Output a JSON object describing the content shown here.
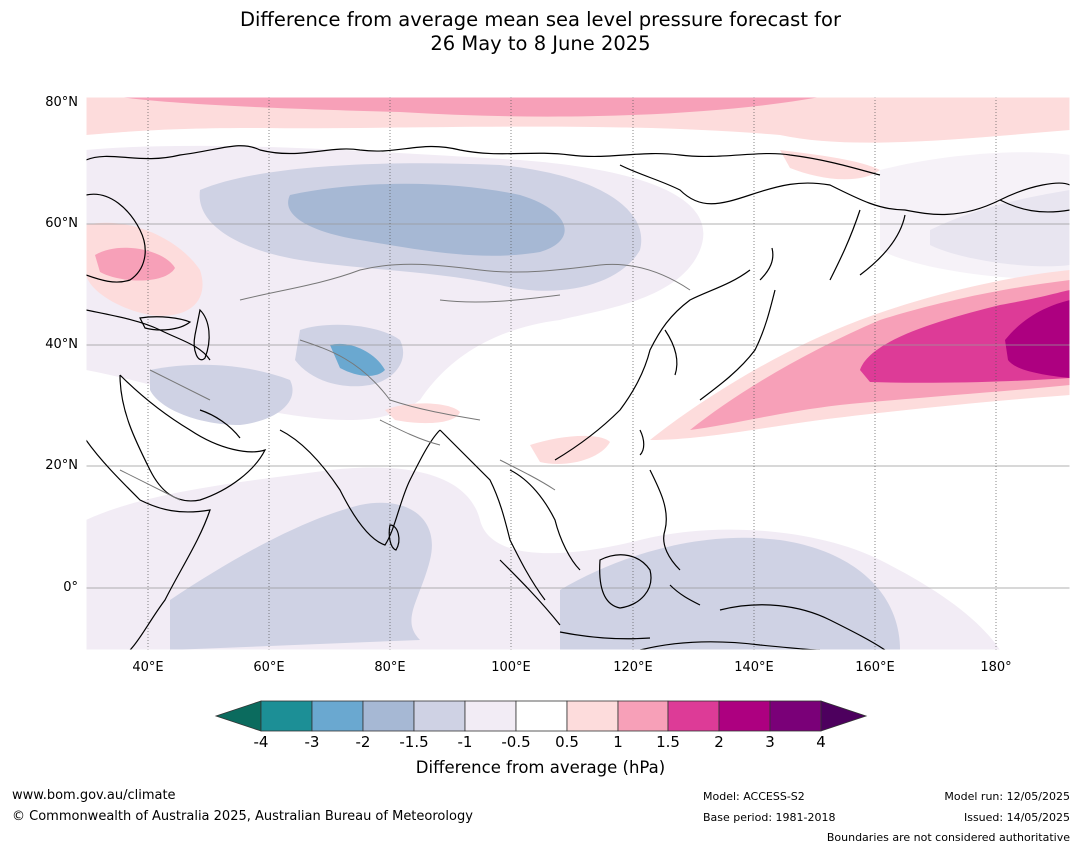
{
  "title": {
    "line1": "Difference from average mean sea level pressure forecast for",
    "line2": "26 May to 8 June 2025"
  },
  "map": {
    "lat_labels": [
      "80°N",
      "60°N",
      "40°N",
      "20°N",
      "0°"
    ],
    "lon_labels": [
      "40°E",
      "60°E",
      "80°E",
      "100°E",
      "120°E",
      "140°E",
      "160°E",
      "180°"
    ],
    "region": "Asia and western Pacific"
  },
  "colorbar": {
    "title": "Difference from average (hPa)",
    "ticks": [
      "-4",
      "-3",
      "-2",
      "-1.5",
      "-1",
      "-0.5",
      "0.5",
      "1",
      "1.5",
      "2",
      "3",
      "4"
    ],
    "colors": {
      "below_-4": "#0b6b5e",
      "-4_-3": "#1c8f96",
      "-3_-2": "#6aa8d0",
      "-2_-1.5": "#a6b8d4",
      "-1.5_-1": "#cfd2e4",
      "-1_-0.5": "#f2ecf5",
      "-0.5_0.5": "#ffffff",
      "0.5_1": "#fddcdc",
      "1_1.5": "#f7a0b8",
      "1.5_2": "#dd3b97",
      "2_3": "#ad0080",
      "3_4": "#7a0078",
      "above_4": "#4d005e"
    }
  },
  "footer": {
    "website": "www.bom.gov.au/climate",
    "copyright": "© Commonwealth of Australia 2025, Australian Bureau of Meteorology",
    "model": "Model: ACCESS-S2",
    "base_period": "Base period: 1981-2018",
    "model_run": "Model run: 12/05/2025",
    "issued": "Issued: 14/05/2025",
    "disclaimer": "Boundaries are not considered authoritative"
  }
}
